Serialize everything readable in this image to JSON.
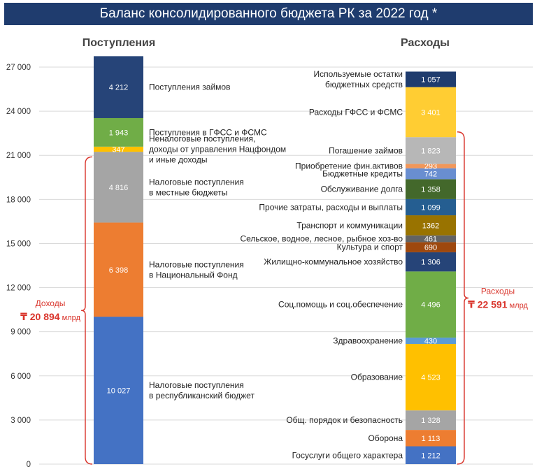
{
  "title": "Баланс консолидированного бюджета РК за 2022 год *",
  "colors": {
    "title_bg": "#1f3c6e",
    "bracket": "#d9342b",
    "grid": "#d9d9d9"
  },
  "chart_data": {
    "type": "bar",
    "stacked": true,
    "title": "Баланс консолидированного бюджета РК за 2022 год *",
    "ylim": [
      0,
      27000
    ],
    "yticks": [
      0,
      3000,
      6000,
      9000,
      12000,
      15000,
      18000,
      21000,
      24000,
      27000
    ],
    "ytick_labels": [
      "0",
      "3 000",
      "6 000",
      "9 000",
      "12 000",
      "15 000",
      "18 000",
      "21 000",
      "24 000",
      "27 000"
    ],
    "grid": true,
    "columns": [
      {
        "name": "Поступления",
        "segments": [
          {
            "label": "Налоговые поступления в республиканский бюджет",
            "lines": [
              "Налоговые поступления",
              "в республиканский бюджет"
            ],
            "value": 10027,
            "value_label": "10 027",
            "color": "#4472c4"
          },
          {
            "label": "Налоговые поступления в Национальный Фонд",
            "lines": [
              "Налоговые поступления",
              "в Национальный Фонд"
            ],
            "value": 6398,
            "value_label": "6 398",
            "color": "#ed7d31"
          },
          {
            "label": "Налоговые поступления в местные бюджеты",
            "lines": [
              "Налоговые поступления",
              "в местные бюджеты"
            ],
            "value": 4816,
            "value_label": "4 816",
            "color": "#a5a5a5"
          },
          {
            "label": "Неналоговые поступления, доходы от управления Нацфондом и иные доходы",
            "lines": [
              "Неналоговые поступления,",
              "доходы от управления Нацфондом",
              "и иные доходы"
            ],
            "value": 347,
            "value_label": "347",
            "color": "#ffc000"
          },
          {
            "label": "Поступления в ГФСС и ФСМС",
            "lines": [
              "Поступления в ГФСС и ФСМС"
            ],
            "value": 1943,
            "value_label": "1 943",
            "color": "#70ad47"
          },
          {
            "label": "Поступления займов",
            "lines": [
              "Поступления займов"
            ],
            "value": 4212,
            "value_label": "4 212",
            "color": "#264478"
          }
        ]
      },
      {
        "name": "Расходы",
        "segments": [
          {
            "label": "Госуслуги общего характера",
            "lines": [
              "Госуслуги общего характера"
            ],
            "value": 1212,
            "value_label": "1 212",
            "color": "#4472c4"
          },
          {
            "label": "Оборона",
            "lines": [
              "Оборона"
            ],
            "value": 1113,
            "value_label": "1 113",
            "color": "#ed7d31"
          },
          {
            "label": "Общ. порядок и безопасность",
            "lines": [
              "Общ. порядок и безопасность"
            ],
            "value": 1328,
            "value_label": "1 328",
            "color": "#a5a5a5"
          },
          {
            "label": "Образование",
            "lines": [
              "Образование"
            ],
            "value": 4523,
            "value_label": "4 523",
            "color": "#ffc000"
          },
          {
            "label": "Здравоохранение",
            "lines": [
              "Здравоохранение"
            ],
            "value": 430,
            "value_label": "430",
            "color": "#5b9bd5"
          },
          {
            "label": "Соц.помощь и соц.обеспечение",
            "lines": [
              "Соц.помощь и соц.обеспечение"
            ],
            "value": 4496,
            "value_label": "4 496",
            "color": "#70ad47"
          },
          {
            "label": "Жилищно-коммунальное хозяйство",
            "lines": [
              "Жилищно-коммунальное хозяйство"
            ],
            "value": 1306,
            "value_label": "1 306",
            "color": "#264478"
          },
          {
            "label": "Культура и спорт",
            "lines": [
              "Культура и спорт"
            ],
            "value": 690,
            "value_label": "690",
            "color": "#9e480e"
          },
          {
            "label": "Сельское, водное, лесное, рыбное хоз-во",
            "lines": [
              "Сельское, водное, лесное, рыбное хоз-во"
            ],
            "value": 461,
            "value_label": "461",
            "color": "#636363"
          },
          {
            "label": "Транспорт и коммуникации",
            "lines": [
              "Транспорт и коммуникации"
            ],
            "value": 1362,
            "value_label": "1362",
            "color": "#997300"
          },
          {
            "label": "Прочие затраты, расходы и выплаты",
            "lines": [
              "Прочие затраты, расходы и выплаты"
            ],
            "value": 1099,
            "value_label": "1 099",
            "color": "#255e91"
          },
          {
            "label": "Обслуживание долга",
            "lines": [
              "Обслуживание долга"
            ],
            "value": 1358,
            "value_label": "1 358",
            "color": "#43682b"
          },
          {
            "label": "Бюджетные кредиты",
            "lines": [
              "Бюджетные кредиты"
            ],
            "value": 742,
            "value_label": "742",
            "color": "#698ed0"
          },
          {
            "label": "Приобретение фин.активов",
            "lines": [
              "Приобретение фин.активов"
            ],
            "value": 293,
            "value_label": "293",
            "color": "#f1975a"
          },
          {
            "label": "Погашение займов",
            "lines": [
              "Погашение займов"
            ],
            "value": 1823,
            "value_label": "1 823",
            "color": "#b7b7b7"
          },
          {
            "label": "Расходы ГФСС и ФСМС",
            "lines": [
              "Расходы ГФСС и ФСМС"
            ],
            "value": 3401,
            "value_label": "3 401",
            "color": "#ffcd33"
          },
          {
            "label": "Используемые остатки бюджетных средств",
            "lines": [
              "Используемые остатки",
              "бюджетных средств"
            ],
            "value": 1057,
            "value_label": "1 057",
            "color": "#1f3c6e"
          }
        ]
      }
    ],
    "annotations": [
      {
        "name": "Доходы",
        "amount": "₸ 20 894",
        "unit": "млрд",
        "value": 20894,
        "column": "Поступления"
      },
      {
        "name": "Расходы",
        "amount": "₸ 22 591",
        "unit": "млрд",
        "value": 22591,
        "column": "Расходы"
      }
    ]
  }
}
